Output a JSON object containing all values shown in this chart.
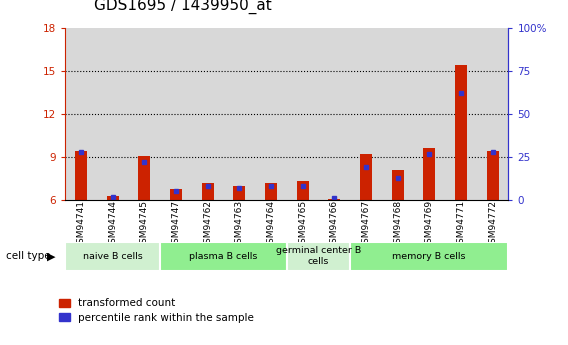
{
  "title": "GDS1695 / 1439950_at",
  "samples": [
    "GSM94741",
    "GSM94744",
    "GSM94745",
    "GSM94747",
    "GSM94762",
    "GSM94763",
    "GSM94764",
    "GSM94765",
    "GSM94766",
    "GSM94767",
    "GSM94768",
    "GSM94769",
    "GSM94771",
    "GSM94772"
  ],
  "red_values": [
    9.4,
    6.3,
    9.1,
    6.8,
    7.2,
    7.0,
    7.2,
    7.3,
    6.1,
    9.2,
    8.1,
    9.6,
    15.4,
    9.4
  ],
  "blue_percentiles": [
    28,
    2,
    22,
    5,
    8,
    7,
    8,
    8,
    1,
    19,
    13,
    27,
    62,
    28
  ],
  "ylim_left": [
    6,
    18
  ],
  "ylim_right": [
    0,
    100
  ],
  "yticks_left": [
    6,
    9,
    12,
    15,
    18
  ],
  "yticks_right": [
    0,
    25,
    50,
    75,
    100
  ],
  "cell_groups": [
    {
      "label": "naive B cells",
      "start": 0,
      "end": 3,
      "color": "#d0f0d0"
    },
    {
      "label": "plasma B cells",
      "start": 3,
      "end": 7,
      "color": "#90ee90"
    },
    {
      "label": "germinal center B\ncells",
      "start": 7,
      "end": 9,
      "color": "#d0f0d0"
    },
    {
      "label": "memory B cells",
      "start": 9,
      "end": 14,
      "color": "#90ee90"
    }
  ],
  "red_color": "#cc2200",
  "blue_color": "#3333cc",
  "bar_bg_color": "#d8d8d8",
  "legend_red": "transformed count",
  "legend_blue": "percentile rank within the sample",
  "ylabel_left_color": "#cc2200",
  "ylabel_right_color": "#3333cc",
  "title_fontsize": 11,
  "tick_fontsize": 7.5,
  "label_fontsize": 8
}
